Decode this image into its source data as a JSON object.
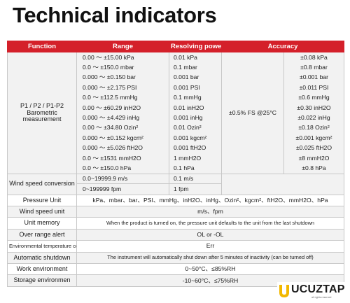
{
  "title": "Technical indicators",
  "header": {
    "function": "Function",
    "range": "Range",
    "resolving": "Resolving power",
    "accuracy": "Accuracy"
  },
  "barometric": {
    "function": "P1 / P2 / P1-P2\nBarometric measurement",
    "accuracy_all": "±0.5% FS @25°C",
    "rows": [
      {
        "range": "0.00 ～ ±15.00 kPa",
        "res": "0.01 kPa",
        "acc": "±0.08 kPa"
      },
      {
        "range": "0.0 ～ ±150.0 mbar",
        "res": "0.1 mbar",
        "acc": "±0.8 mbar"
      },
      {
        "range": "0.000 ～ ±0.150 bar",
        "res": "0.001 bar",
        "acc": "±0.001 bar"
      },
      {
        "range": "0.000 ～ ±2.175 PSI",
        "res": "0.001 PSI",
        "acc": "±0.011 PSI"
      },
      {
        "range": "0.0 ～ ±112.5 mmHg",
        "res": "0.1 mmHg",
        "acc": "±0.6 mmHg"
      },
      {
        "range": "0.00 ～ ±60.29 inH2O",
        "res": "0.01 inH2O",
        "acc": "±0.30 inH2O"
      },
      {
        "range": "0.000 ～ ±4.429 inHg",
        "res": "0.001 inHg",
        "acc": "±0.022 inHg"
      },
      {
        "range": "0.00 ～ ±34.80 Ozin²",
        "res": "0.01 Ozin²",
        "acc": "±0.18 Ozin²"
      },
      {
        "range": "0.000 ～ ±0.152 kgcm²",
        "res": "0.001 kgcm²",
        "acc": "±0.001 kgcm²"
      },
      {
        "range": "0.000 ～ ±5.026 ftH2O",
        "res": "0.001 ftH2O",
        "acc": "±0.025 ftH2O"
      },
      {
        "range": "0.0 ～ ±1531 mmH2O",
        "res": "1 mmH2O",
        "acc": "±8 mmH2O"
      },
      {
        "range": "0.0 ～ ±150.0 hPa",
        "res": "0.1 hPa",
        "acc": "±0.8 hPa"
      }
    ]
  },
  "wind": {
    "function": "Wind speed conversion",
    "rows": [
      {
        "range": "0.0~19999.9 m/s",
        "res": "0.1 m/s"
      },
      {
        "range": "0~199999 fpm",
        "res": "1 fpm"
      }
    ]
  },
  "misc": [
    {
      "label": "Pressure Unit",
      "value": "kPa、mbar、bar、PSI、mmHg、inH2O、inHg、Ozin²、kgcm²、ftH2O、mmH2O、hPa"
    },
    {
      "label": "Wind speed unit",
      "value": "m/s、fpm"
    },
    {
      "label": "Unit memory",
      "value": "When the product is turned on, the pressure unit defaults to the unit from the last shutdown"
    },
    {
      "label": "Over range alert",
      "value": "OL or -OL"
    },
    {
      "label": "Environmental temperature compensation fault prompt",
      "value": "Err"
    },
    {
      "label": "Automatic shutdown",
      "value": "The instrument will automatically shut down after 5 minutes of inactivity (can be turned off)"
    },
    {
      "label": "Work environment",
      "value": "0~50°C、≤85%RH"
    },
    {
      "label": "Storage environmen",
      "value": "-10~60°C、≤75%RH"
    }
  ],
  "logo": {
    "brand": "UCUZTAP",
    "tagline": "all rights reserved",
    "color": "#f2b800"
  }
}
